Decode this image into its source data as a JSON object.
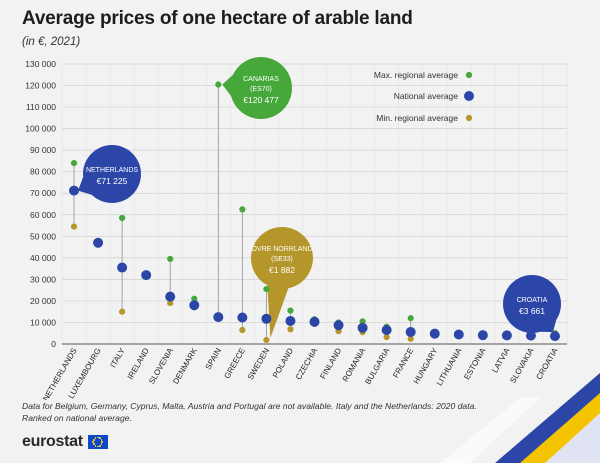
{
  "header": {
    "title": "Average prices of one hectare of arable land",
    "subtitle": "(in €, 2021)"
  },
  "legend": {
    "max_label": "Max. regional average",
    "national_label": "National average",
    "min_label": "Min. regional average"
  },
  "colors": {
    "max": "#46a83a",
    "national": "#2c46a8",
    "min": "#b4962a",
    "callout_blue": "#2c46a8",
    "callout_green": "#46a83a",
    "callout_gold": "#b4962a",
    "grid": "#cfcfcf",
    "stem": "#9a9a9a"
  },
  "callouts": [
    {
      "country": "Netherlands",
      "lines": [
        "NETHERLANDS"
      ],
      "value": "€71 225",
      "style": "blue"
    },
    {
      "country": "Spain",
      "lines": [
        "CANARIAS",
        "(ES70)"
      ],
      "value": "€120 477",
      "style": "green"
    },
    {
      "country": "Sweden",
      "lines": [
        "ÖVRE NORRLAND",
        "(SE33)"
      ],
      "value": "€1 882",
      "style": "gold"
    },
    {
      "country": "Croatia",
      "lines": [
        "CROATIA"
      ],
      "value": "€3 661",
      "style": "blue"
    }
  ],
  "chart_data": {
    "type": "scatter",
    "y_tick_labels": [
      "0",
      "10 000",
      "20 000",
      "30 000",
      "40 000",
      "50 000",
      "60 000",
      "70 000",
      "80 000",
      "90 000",
      "100 000",
      "110 000",
      "120 000",
      "130 000"
    ],
    "ylim": [
      0,
      130000
    ],
    "grid": true,
    "legend_position": "top-right",
    "categories": [
      "NETHERLANDS",
      "LUXEMBOURG",
      "ITALY",
      "IRELAND",
      "SLOVENIA",
      "DENMARK",
      "SPAIN",
      "GREECE",
      "SWEDEN",
      "POLAND",
      "CZECHIA",
      "FINLAND",
      "ROMANIA",
      "BULGARIA",
      "FRANCE",
      "HUNGARY",
      "LITHUANIA",
      "ESTONIA",
      "LATVIA",
      "SLOVAKIA",
      "CROATIA"
    ],
    "series": [
      {
        "name": "Max. regional average",
        "values": [
          84000,
          null,
          58500,
          null,
          39500,
          21000,
          120477,
          62500,
          25500,
          15500,
          11500,
          10000,
          10500,
          8000,
          12000,
          null,
          null,
          null,
          null,
          null,
          5000
        ]
      },
      {
        "name": "National average",
        "values": [
          71225,
          47000,
          35500,
          32000,
          22000,
          18000,
          12500,
          12300,
          11700,
          10700,
          10300,
          8700,
          7500,
          6500,
          5600,
          4800,
          4400,
          4100,
          4000,
          3900,
          3661
        ]
      },
      {
        "name": "Min. regional average",
        "values": [
          54500,
          null,
          15000,
          null,
          19000,
          17000,
          null,
          6500,
          1882,
          6800,
          9300,
          6000,
          5500,
          3200,
          2400,
          4000,
          null,
          null,
          null,
          null,
          2900
        ]
      }
    ]
  },
  "footnote": {
    "line1": "Data for Belgium, Germany, Cyprus, Malta, Austria and Portugal are not available. Italy and the Netherlands: 2020 data.",
    "line2": "Ranked on national average."
  },
  "logo": {
    "text": "eurostat"
  }
}
